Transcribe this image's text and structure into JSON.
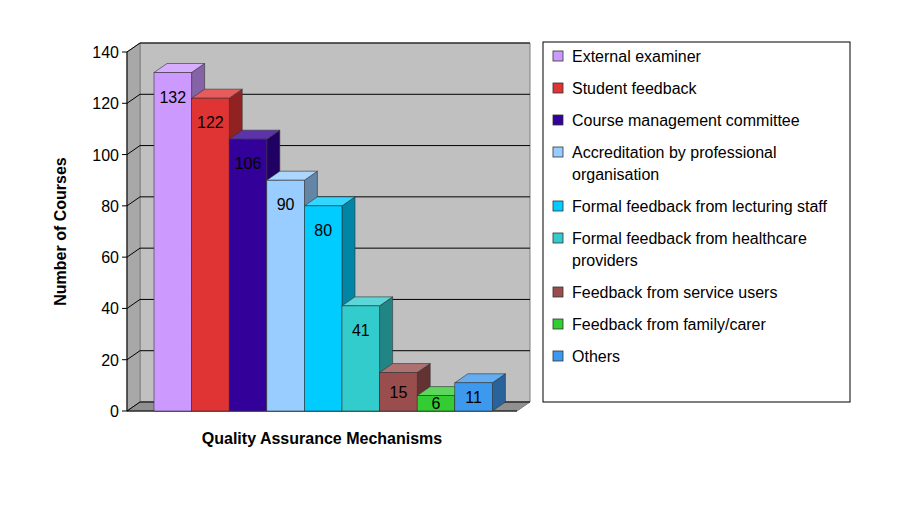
{
  "chart_data": {
    "type": "bar",
    "x_label": "Quality Assurance Mechanisms",
    "y_label": "Number of Courses",
    "categories": [
      "External examiner",
      "Student feedback",
      "Course management committee",
      "Accreditation by professional organisation",
      "Formal feedback from lecturing staff",
      "Formal feedback from healthcare providers",
      "Feedback from service users",
      "Feedback from family/carer",
      "Others"
    ],
    "values": [
      132,
      122,
      106,
      90,
      80,
      41,
      15,
      6,
      11
    ],
    "colors": [
      "#cc99ff",
      "#e03333",
      "#330099",
      "#99ccff",
      "#00ccff",
      "#33cccc",
      "#994d4d",
      "#33cc33",
      "#3d99ee"
    ],
    "ylim": [
      0,
      140
    ],
    "yticks": [
      0,
      20,
      40,
      60,
      80,
      100,
      120,
      140
    ],
    "grid": true,
    "data_labels": true,
    "legend": "right",
    "tick_labels": "y"
  }
}
